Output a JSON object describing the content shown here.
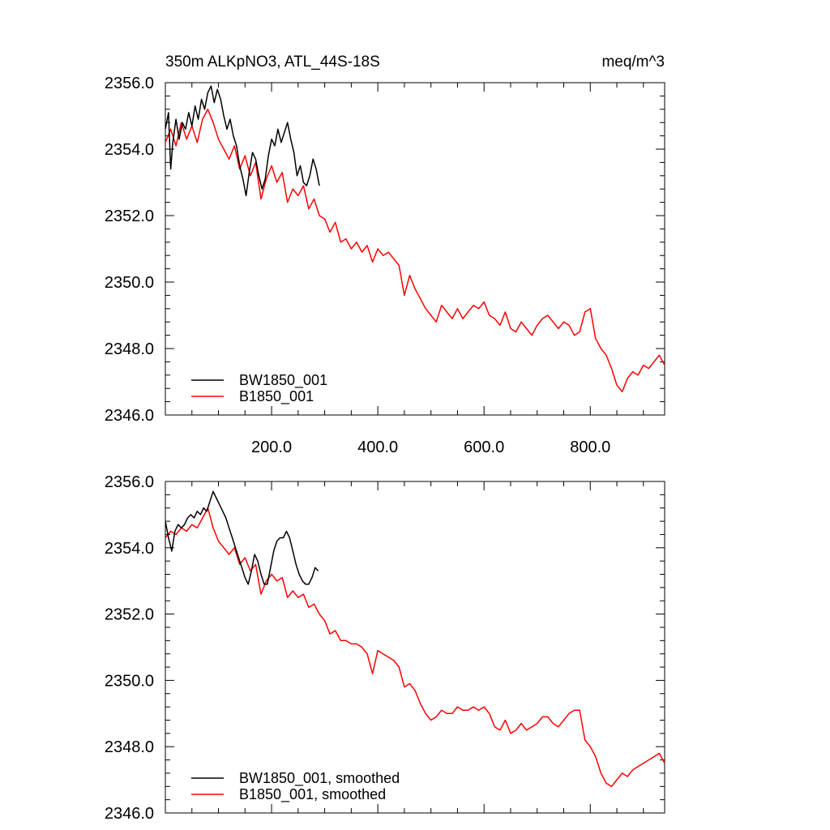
{
  "chart_data": [
    {
      "type": "line",
      "title": "350m ALKpNO3, ATL_44S-18S",
      "units": "meq/m^3",
      "xlim": [
        0,
        940
      ],
      "ylim": [
        2346,
        2356
      ],
      "x_ticks": [
        200,
        400,
        600,
        800
      ],
      "x_tick_labels": [
        "200.0",
        "400.0",
        "600.0",
        "800.0"
      ],
      "y_ticks": [
        2346,
        2348,
        2350,
        2352,
        2354,
        2356
      ],
      "y_tick_labels": [
        "2346.0",
        "2348.0",
        "2350.0",
        "2352.0",
        "2354.0",
        "2356.0"
      ],
      "legend_position": "bottom-left",
      "series": [
        {
          "name": "BW1850_001",
          "color": "#000000",
          "x": [
            0,
            6,
            10,
            14,
            20,
            26,
            32,
            38,
            44,
            50,
            56,
            62,
            68,
            74,
            80,
            86,
            92,
            98,
            104,
            110,
            116,
            122,
            128,
            134,
            140,
            146,
            152,
            158,
            164,
            170,
            176,
            182,
            188,
            194,
            200,
            206,
            212,
            218,
            224,
            230,
            236,
            242,
            248,
            254,
            260,
            266,
            272,
            278,
            284,
            290
          ],
          "values": [
            2354.6,
            2355.1,
            2353.4,
            2354.2,
            2354.9,
            2354.3,
            2354.8,
            2354.6,
            2355.1,
            2354.7,
            2355.3,
            2354.9,
            2355.5,
            2355.2,
            2355.7,
            2355.9,
            2355.4,
            2355.8,
            2355.5,
            2355.0,
            2354.6,
            2354.9,
            2354.4,
            2354.1,
            2353.5,
            2353.1,
            2352.6,
            2353.3,
            2353.9,
            2353.7,
            2353.2,
            2352.8,
            2353.1,
            2353.8,
            2354.3,
            2354.1,
            2354.6,
            2354.2,
            2354.5,
            2354.8,
            2354.3,
            2353.9,
            2353.2,
            2353.5,
            2353.0,
            2352.9,
            2353.2,
            2353.7,
            2353.4,
            2352.9
          ]
        },
        {
          "name": "B1850_001",
          "color": "#ff0000",
          "x": [
            0,
            10,
            20,
            30,
            40,
            50,
            60,
            70,
            80,
            90,
            100,
            110,
            120,
            130,
            140,
            150,
            160,
            170,
            180,
            190,
            200,
            210,
            220,
            230,
            240,
            250,
            260,
            270,
            280,
            290,
            300,
            310,
            320,
            330,
            340,
            350,
            360,
            370,
            380,
            390,
            400,
            410,
            420,
            430,
            440,
            450,
            460,
            470,
            480,
            490,
            500,
            510,
            520,
            530,
            540,
            550,
            560,
            570,
            580,
            590,
            600,
            610,
            620,
            630,
            640,
            650,
            660,
            670,
            680,
            690,
            700,
            710,
            720,
            730,
            740,
            750,
            760,
            770,
            780,
            790,
            800,
            810,
            820,
            830,
            840,
            850,
            860,
            870,
            880,
            890,
            900,
            910,
            920,
            930,
            940
          ],
          "values": [
            2354.2,
            2354.6,
            2354.1,
            2354.8,
            2354.3,
            2354.7,
            2354.2,
            2354.9,
            2355.2,
            2354.8,
            2354.3,
            2354.0,
            2353.7,
            2354.1,
            2353.4,
            2353.8,
            2353.2,
            2353.6,
            2352.5,
            2353.1,
            2353.5,
            2353.0,
            2353.3,
            2352.4,
            2352.8,
            2352.6,
            2352.9,
            2352.2,
            2352.5,
            2352.0,
            2351.9,
            2351.5,
            2351.8,
            2351.2,
            2351.3,
            2351.0,
            2351.2,
            2350.9,
            2351.1,
            2350.6,
            2351.0,
            2350.8,
            2350.9,
            2350.7,
            2350.5,
            2349.6,
            2350.2,
            2349.8,
            2349.5,
            2349.2,
            2349.0,
            2348.8,
            2349.3,
            2349.1,
            2348.9,
            2349.2,
            2348.9,
            2349.1,
            2349.3,
            2349.2,
            2349.4,
            2349.0,
            2348.9,
            2348.7,
            2349.1,
            2348.6,
            2348.5,
            2348.8,
            2348.6,
            2348.4,
            2348.7,
            2348.9,
            2349.0,
            2348.8,
            2348.6,
            2348.8,
            2348.7,
            2348.4,
            2348.5,
            2349.1,
            2349.2,
            2348.3,
            2348.0,
            2347.8,
            2347.4,
            2346.9,
            2346.7,
            2347.1,
            2347.3,
            2347.2,
            2347.5,
            2347.4,
            2347.6,
            2347.8,
            2347.5
          ]
        }
      ]
    },
    {
      "type": "line",
      "xlim": [
        0,
        940
      ],
      "ylim": [
        2346,
        2356
      ],
      "y_ticks": [
        2346,
        2348,
        2350,
        2352,
        2354,
        2356
      ],
      "y_tick_labels": [
        "2346.0",
        "2348.0",
        "2350.0",
        "2352.0",
        "2354.0",
        "2356.0"
      ],
      "legend_position": "bottom-left",
      "series": [
        {
          "name": "BW1850_001, smoothed",
          "color": "#000000",
          "x": [
            0,
            6,
            12,
            18,
            24,
            30,
            36,
            42,
            48,
            54,
            60,
            66,
            72,
            78,
            84,
            90,
            96,
            102,
            108,
            114,
            120,
            126,
            132,
            138,
            144,
            150,
            156,
            162,
            168,
            174,
            180,
            186,
            192,
            198,
            204,
            210,
            216,
            222,
            228,
            234,
            240,
            246,
            252,
            258,
            264,
            270,
            276,
            282,
            288
          ],
          "values": [
            2354.8,
            2354.3,
            2353.9,
            2354.5,
            2354.7,
            2354.6,
            2354.7,
            2354.9,
            2355.0,
            2354.9,
            2355.1,
            2355.0,
            2355.2,
            2355.1,
            2355.4,
            2355.7,
            2355.5,
            2355.3,
            2355.1,
            2354.9,
            2354.6,
            2354.3,
            2354.0,
            2353.7,
            2353.4,
            2353.1,
            2352.9,
            2353.3,
            2353.8,
            2353.6,
            2353.2,
            2352.9,
            2352.9,
            2353.4,
            2353.9,
            2354.2,
            2354.3,
            2354.3,
            2354.5,
            2354.3,
            2353.9,
            2353.5,
            2353.2,
            2353.0,
            2352.9,
            2352.9,
            2353.1,
            2353.4,
            2353.3
          ]
        },
        {
          "name": "B1850_001, smoothed",
          "color": "#ff0000",
          "x": [
            0,
            10,
            20,
            30,
            40,
            50,
            60,
            70,
            80,
            90,
            100,
            110,
            120,
            130,
            140,
            150,
            160,
            170,
            180,
            190,
            200,
            210,
            220,
            230,
            240,
            250,
            260,
            270,
            280,
            290,
            300,
            310,
            320,
            330,
            340,
            350,
            360,
            370,
            380,
            390,
            400,
            410,
            420,
            430,
            440,
            450,
            460,
            470,
            480,
            490,
            500,
            510,
            520,
            530,
            540,
            550,
            560,
            570,
            580,
            590,
            600,
            610,
            620,
            630,
            640,
            650,
            660,
            670,
            680,
            690,
            700,
            710,
            720,
            730,
            740,
            750,
            760,
            770,
            780,
            790,
            800,
            810,
            820,
            830,
            840,
            850,
            860,
            870,
            880,
            890,
            900,
            910,
            920,
            930,
            940
          ],
          "values": [
            2354.3,
            2354.5,
            2354.4,
            2354.6,
            2354.5,
            2354.7,
            2354.6,
            2354.9,
            2355.2,
            2354.6,
            2354.2,
            2354.0,
            2353.8,
            2354.0,
            2353.5,
            2353.7,
            2353.3,
            2353.5,
            2352.6,
            2353.0,
            2353.2,
            2353.0,
            2353.1,
            2352.5,
            2352.7,
            2352.5,
            2352.6,
            2352.2,
            2352.3,
            2352.0,
            2351.8,
            2351.4,
            2351.5,
            2351.2,
            2351.2,
            2351.1,
            2351.1,
            2351.0,
            2350.8,
            2350.2,
            2350.9,
            2350.8,
            2350.7,
            2350.6,
            2350.4,
            2349.8,
            2349.9,
            2349.7,
            2349.3,
            2349.0,
            2348.8,
            2348.9,
            2349.1,
            2349.0,
            2349.0,
            2349.2,
            2349.1,
            2349.1,
            2349.2,
            2349.1,
            2349.2,
            2349.0,
            2348.6,
            2348.5,
            2348.8,
            2348.4,
            2348.5,
            2348.7,
            2348.5,
            2348.6,
            2348.7,
            2348.9,
            2348.9,
            2348.7,
            2348.6,
            2348.8,
            2349.0,
            2349.1,
            2349.1,
            2348.2,
            2348.0,
            2347.7,
            2347.2,
            2346.9,
            2346.8,
            2347.0,
            2347.2,
            2347.1,
            2347.3,
            2347.4,
            2347.5,
            2347.6,
            2347.7,
            2347.8,
            2347.5
          ]
        }
      ]
    }
  ]
}
